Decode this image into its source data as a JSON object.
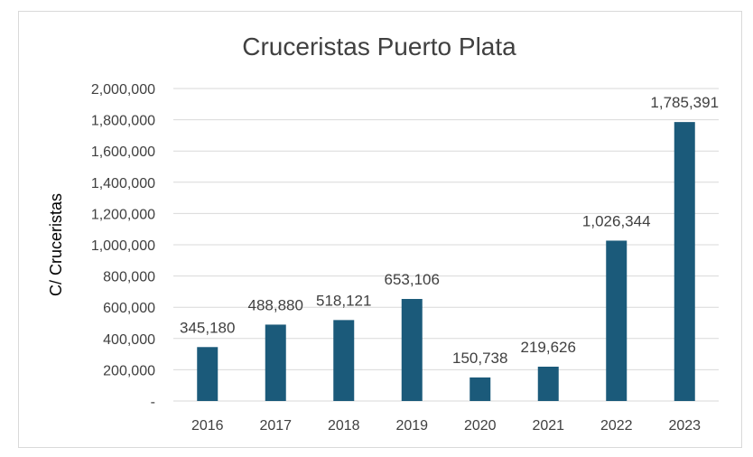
{
  "chart_data": {
    "type": "bar",
    "title": "Cruceristas Puerto Plata",
    "xlabel": "",
    "ylabel": "C/ Cruceristas",
    "categories": [
      "2016",
      "2017",
      "2018",
      "2019",
      "2020",
      "2021",
      "2022",
      "2023"
    ],
    "values": [
      345180,
      488880,
      518121,
      653106,
      150738,
      219626,
      1026344,
      1785391
    ],
    "data_labels": [
      "345,180",
      "488,880",
      "518,121",
      "653,106",
      "150,738",
      "219,626",
      "1,026,344",
      "1,785,391"
    ],
    "ylim": [
      0,
      2000000
    ],
    "yticks": [
      0,
      200000,
      400000,
      600000,
      800000,
      1000000,
      1200000,
      1400000,
      1600000,
      1800000,
      2000000
    ],
    "ytick_labels": [
      "-",
      "200,000",
      "400,000",
      "600,000",
      "800,000",
      "1,000,000",
      "1,200,000",
      "1,400,000",
      "1,600,000",
      "1,800,000",
      "2,000,000"
    ],
    "grid": true,
    "legend": "none",
    "bar_color": "#1b5a7a"
  }
}
